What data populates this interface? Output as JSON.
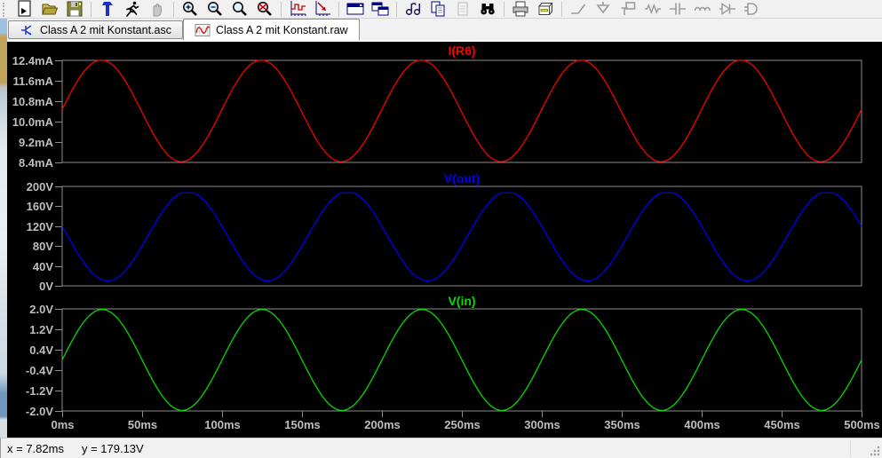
{
  "toolbar": {
    "icons": [
      "new-schematic",
      "open",
      "save",
      "control-panel",
      "run",
      "halt",
      "zoom-area",
      "zoom-back",
      "zoom-fit",
      "zoom-undo",
      "autorange-y",
      "plot-settings",
      "new-plot-pane",
      "cascade-windows",
      "netlist",
      "copy",
      "paste",
      "find",
      "print",
      "print-setup",
      "wire",
      "ground",
      "net-label",
      "resistor",
      "capacitor",
      "inductor",
      "diode",
      "component"
    ]
  },
  "tabs": [
    {
      "label": "Class A 2 mit Konstant.asc",
      "active": false
    },
    {
      "label": "Class A 2 mit Konstant.raw",
      "active": true
    }
  ],
  "status_bar": {
    "x_readout": "x = 7.82ms",
    "y_readout": "y = 179.13V"
  },
  "colors": {
    "plot_bg": "#000000",
    "axis_text": "#bebebe",
    "pane_border": "#8c8c8c",
    "trace_red": "#ff0000",
    "trace_blue": "#0000ff",
    "trace_green": "#00e000"
  },
  "chart_data": {
    "type": "line",
    "x_axis": {
      "ticks": [
        "0ms",
        "50ms",
        "100ms",
        "150ms",
        "200ms",
        "250ms",
        "300ms",
        "350ms",
        "400ms",
        "450ms",
        "500ms"
      ],
      "range_ms": [
        0,
        500
      ]
    },
    "panes": [
      {
        "title": "I(R6)",
        "color": "#ff0000",
        "y_ticks": [
          "12.4mA",
          "11.6mA",
          "10.8mA",
          "10.0mA",
          "9.2mA",
          "8.4mA"
        ],
        "y_range": [
          8.4,
          12.4
        ],
        "y_unit": "mA",
        "waveform": {
          "shape": "sine",
          "offset": 10.42,
          "amplitude": 1.99,
          "period_ms": 100,
          "phase_ms": 0.5,
          "clip_max": 12.42
        }
      },
      {
        "title": "V(out)",
        "color": "#0000ff",
        "y_ticks": [
          "200V",
          "160V",
          "120V",
          "80V",
          "40V",
          "0V"
        ],
        "y_range": [
          0,
          200
        ],
        "y_unit": "V",
        "waveform": {
          "shape": "sine",
          "offset": 100,
          "amplitude": -90,
          "period_ms": 100,
          "phase_ms": -3.5,
          "clip_max": 187
        }
      },
      {
        "title": "V(in)",
        "color": "#00e000",
        "y_ticks": [
          "2.0V",
          "1.2V",
          "0.4V",
          "-0.4V",
          "-1.2V",
          "-2.0V"
        ],
        "y_range": [
          -2,
          2
        ],
        "y_unit": "V",
        "waveform": {
          "shape": "sine",
          "offset": 0,
          "amplitude": 1.98,
          "period_ms": 100,
          "phase_ms": 0,
          "clip_max": null
        }
      }
    ]
  }
}
